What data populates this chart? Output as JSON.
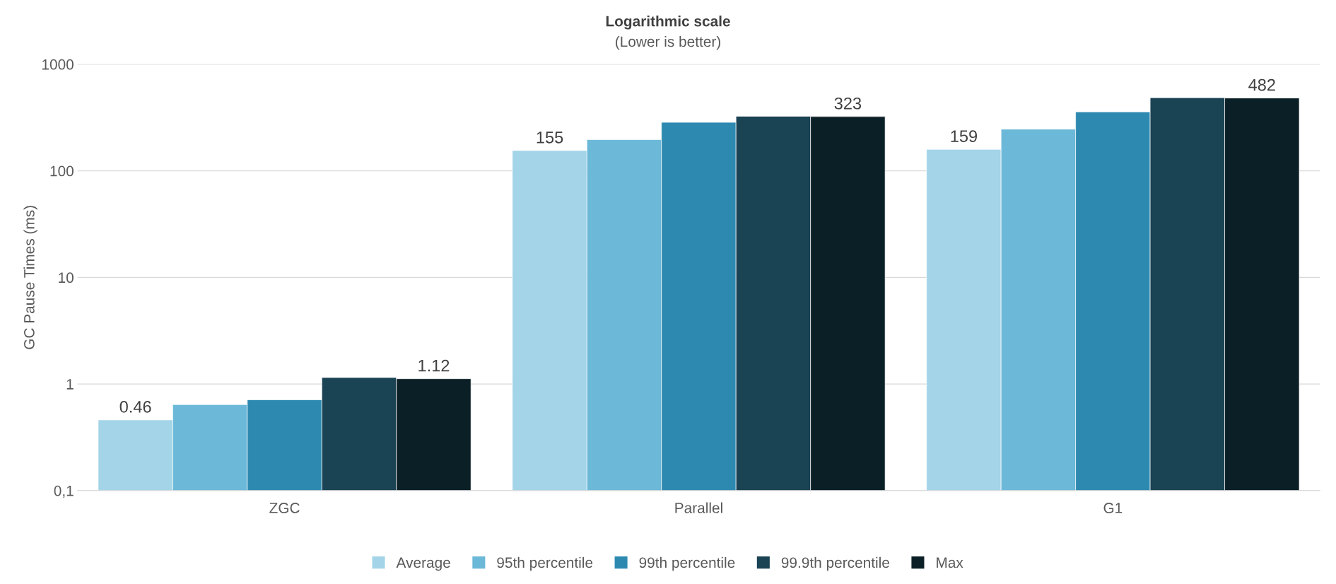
{
  "chart_data": {
    "type": "bar",
    "title": "Logarithmic scale",
    "subtitle": "(Lower is better)",
    "ylabel": "GC Pause Times (ms)",
    "categories": [
      "ZGC",
      "Parallel",
      "G1"
    ],
    "series": [
      {
        "name": "Average",
        "color": "#a3d4e8",
        "values": [
          0.46,
          155,
          159
        ],
        "value_labels": [
          "0.46",
          "155",
          "159"
        ]
      },
      {
        "name": "95th percentile",
        "color": "#6cb8d8",
        "values": [
          0.64,
          196,
          246
        ]
      },
      {
        "name": "99th percentile",
        "color": "#2d89b0",
        "values": [
          0.71,
          285,
          357
        ]
      },
      {
        "name": "99.9th percentile",
        "color": "#1a4354",
        "values": [
          1.15,
          325,
          485
        ]
      },
      {
        "name": "Max",
        "color": "#0b1f26",
        "values": [
          1.12,
          323,
          482
        ],
        "value_labels": [
          "1.12",
          "323",
          "482"
        ]
      }
    ],
    "log": "y",
    "ylim": [
      0.1,
      1000
    ],
    "yticks": [
      {
        "value": 0.1,
        "label": "0,1"
      },
      1,
      10,
      100,
      1000
    ],
    "grid": "y",
    "legend": "bottom"
  }
}
